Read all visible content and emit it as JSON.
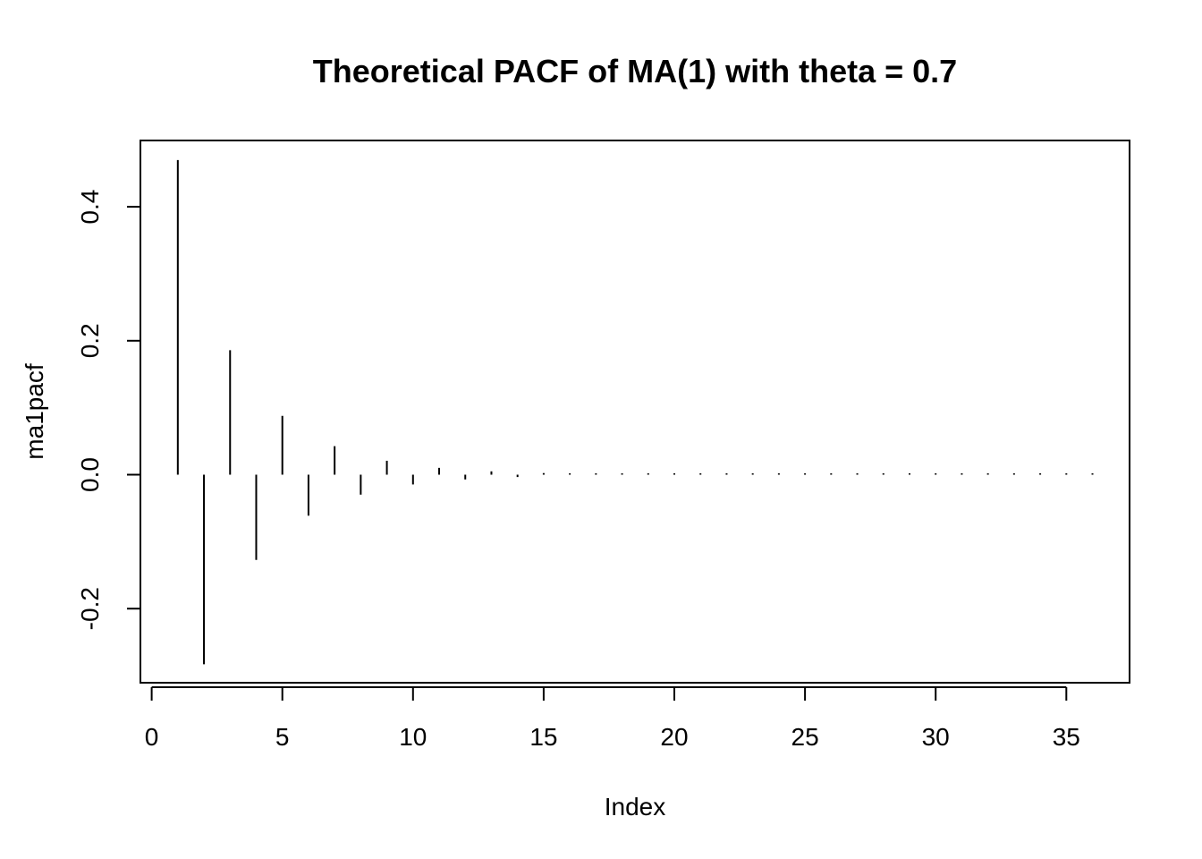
{
  "chart_data": {
    "type": "bar",
    "title": "Theoretical PACF of MA(1) with theta = 0.7",
    "xlabel": "Index",
    "ylabel": "ma1pacf",
    "xlim": [
      0,
      36
    ],
    "ylim": [
      -0.3,
      0.5
    ],
    "x_ticks": [
      0,
      5,
      10,
      15,
      20,
      25,
      30,
      35
    ],
    "y_ticks": [
      -0.2,
      0.0,
      0.2,
      0.4
    ],
    "y_tick_labels": [
      "-0.2",
      "0.0",
      "0.2",
      "0.4"
    ],
    "grid": false,
    "color": "#000000",
    "x": [
      1,
      2,
      3,
      4,
      5,
      6,
      7,
      8,
      9,
      10,
      11,
      12,
      13,
      14,
      15,
      16,
      17,
      18,
      19,
      20,
      21,
      22,
      23,
      24,
      25,
      26,
      27,
      28,
      29,
      30,
      31,
      32,
      33,
      34,
      35,
      36
    ],
    "values": [
      0.4698,
      -0.2831,
      0.1859,
      -0.1272,
      0.0878,
      -0.0612,
      0.0426,
      -0.0298,
      0.0208,
      -0.0146,
      0.0102,
      -0.0071,
      0.005,
      -0.0035,
      0.0024,
      -0.0017,
      0.0012,
      -0.0008,
      0.0006,
      -0.0004,
      0.0003,
      -0.0002,
      0.0001,
      -0.0001,
      0.0001,
      0.0,
      0.0,
      0.0,
      0.0,
      0.0,
      0.0,
      0.0,
      0.0,
      0.0,
      0.0,
      0.0
    ]
  }
}
